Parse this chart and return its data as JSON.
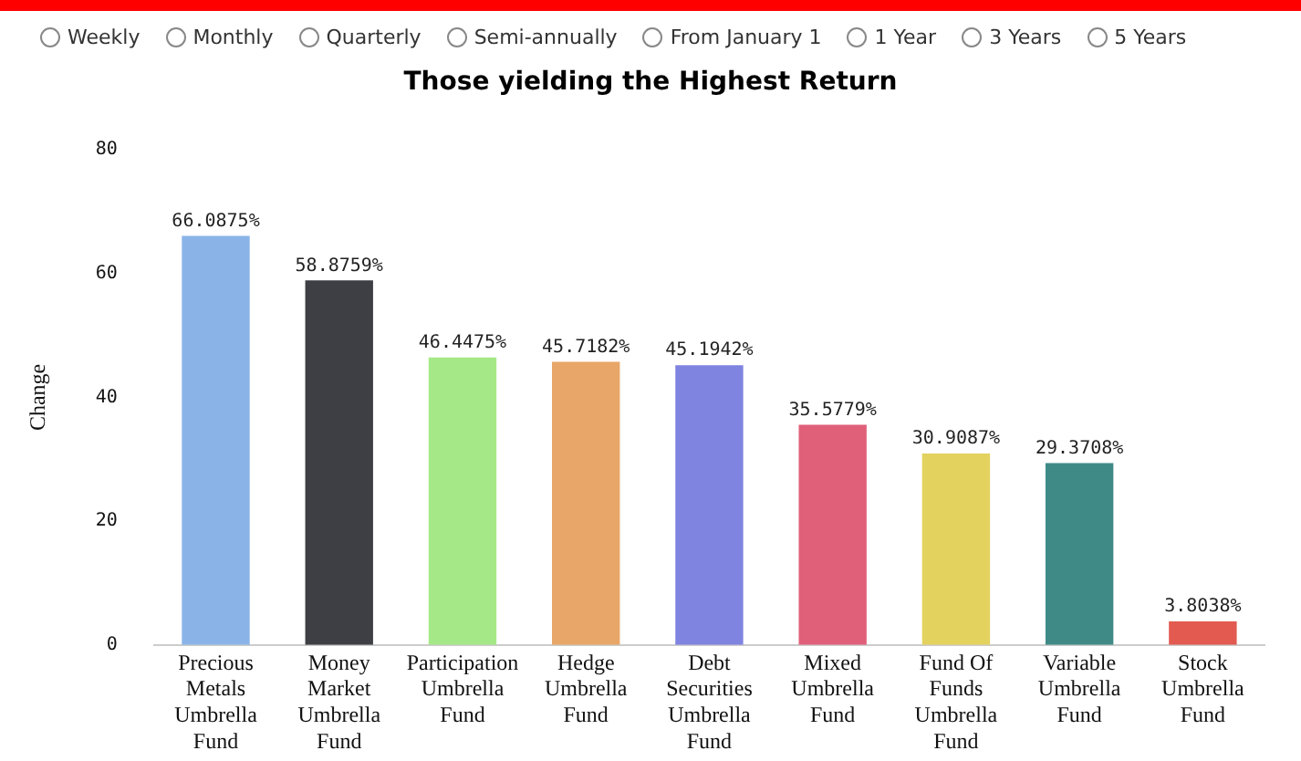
{
  "chart_data": {
    "type": "bar",
    "title": "Those yielding the Highest Return",
    "ylabel": "Change",
    "annotations": [
      "Weekly",
      "Monthly",
      "Quarterly",
      "Semi-annually",
      "From January 1",
      "1 Year",
      "3 Years",
      "5 Years"
    ],
    "categories": [
      "Precious Metals Umbrella Fund",
      "Money Market Umbrella Fund",
      "Participation Umbrella Fund",
      "Hedge Umbrella Fund",
      "Debt Securities Umbrella Fund",
      "Mixed Umbrella Fund",
      "Fund Of Funds Umbrella Fund",
      "Variable Umbrella Fund",
      "Stock Umbrella Fund"
    ],
    "values": [
      66.0875,
      58.8759,
      46.4475,
      45.7182,
      45.1942,
      35.5779,
      30.9087,
      29.3708,
      3.8038
    ],
    "value_labels": [
      "66.0875%",
      "58.8759%",
      "46.4475%",
      "45.7182%",
      "45.1942%",
      "35.5779%",
      "30.9087%",
      "29.3708%",
      "3.8038%"
    ],
    "colors": [
      "#8ab4e8",
      "#3d3f45",
      "#a5e887",
      "#e8a668",
      "#7f84e0",
      "#e0607a",
      "#e3d25e",
      "#3f8a87",
      "#e25a50"
    ],
    "ylim": [
      0,
      80
    ],
    "yticks": [
      0,
      20,
      40,
      60,
      80
    ],
    "grid": false,
    "legend": false
  }
}
